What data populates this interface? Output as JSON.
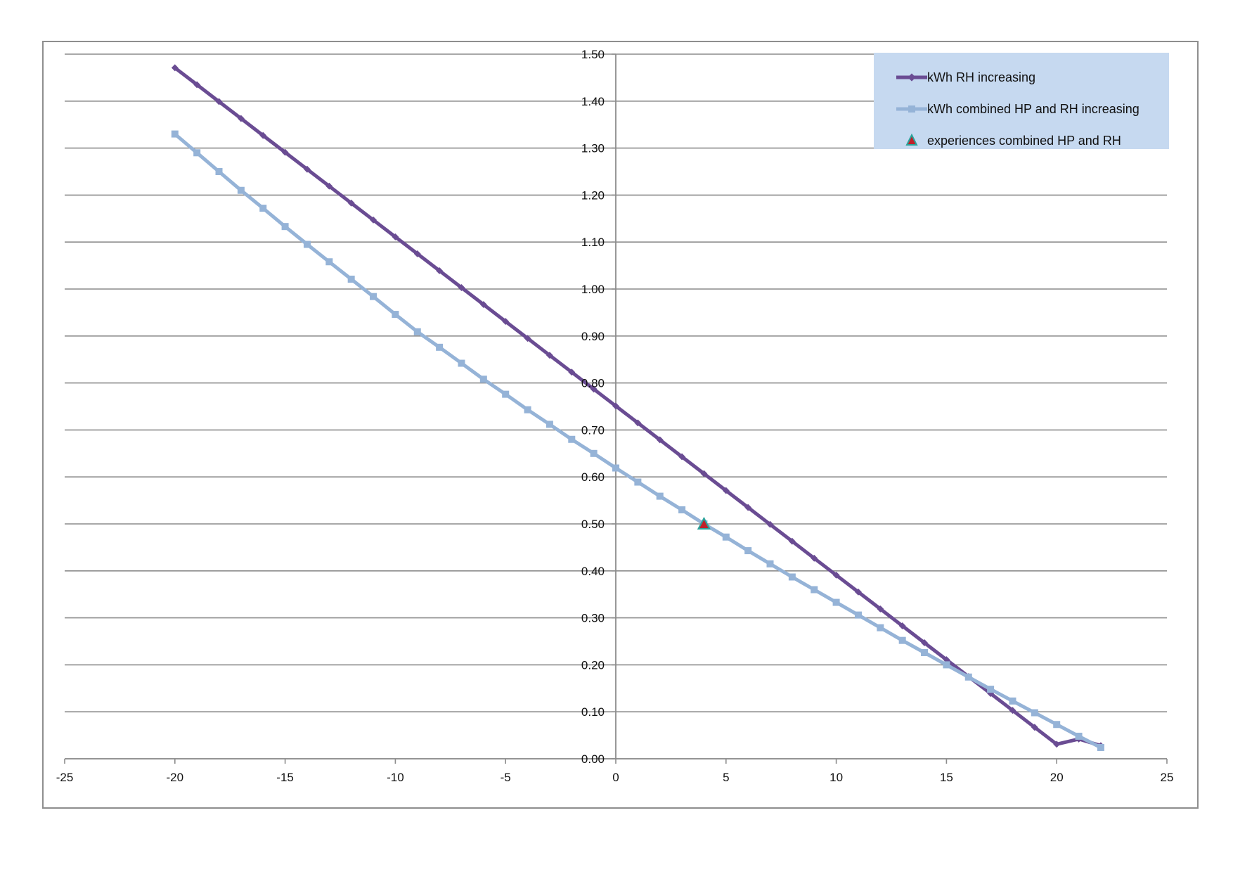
{
  "chart_data": {
    "type": "line",
    "title": "",
    "xlabel": "",
    "ylabel": "",
    "xlim": [
      -25,
      25
    ],
    "ylim": [
      0,
      1.5
    ],
    "x_ticks": [
      "-25",
      "-20",
      "-15",
      "-10",
      "-5",
      "0",
      "5",
      "10",
      "15",
      "20",
      "25"
    ],
    "y_ticks": [
      "0.00",
      "0.10",
      "0.20",
      "0.30",
      "0.40",
      "0.50",
      "0.60",
      "0.70",
      "0.80",
      "0.90",
      "1.00",
      "1.10",
      "1.20",
      "1.30",
      "1.40",
      "1.50"
    ],
    "grid": "horizontal",
    "legend_position": "top-right",
    "series": [
      {
        "name": "kWh RH increasing",
        "type": "line",
        "color": "#6a4c93",
        "marker": "diamond",
        "x": [
          -20,
          -19,
          -18,
          -17,
          -16,
          -15,
          -14,
          -13,
          -12,
          -11,
          -10,
          -9,
          -8,
          -7,
          -6,
          -5,
          -4,
          -3,
          -2,
          -1,
          0,
          1,
          2,
          3,
          4,
          5,
          6,
          7,
          8,
          9,
          10,
          11,
          12,
          13,
          14,
          15,
          16,
          17,
          18,
          19,
          20,
          21,
          22
        ],
        "y": [
          1.471,
          1.435,
          1.399,
          1.363,
          1.327,
          1.291,
          1.255,
          1.219,
          1.183,
          1.147,
          1.111,
          1.075,
          1.039,
          1.003,
          0.967,
          0.931,
          0.895,
          0.859,
          0.823,
          0.787,
          0.751,
          0.715,
          0.679,
          0.643,
          0.607,
          0.571,
          0.535,
          0.499,
          0.463,
          0.427,
          0.391,
          0.355,
          0.319,
          0.283,
          0.247,
          0.211,
          0.175,
          0.139,
          0.103,
          0.067,
          0.031,
          0.042,
          0.028
        ]
      },
      {
        "name": "kWh combined HP and RH increasing",
        "type": "line",
        "color": "#95b3d7",
        "marker": "square",
        "x": [
          -20,
          -19,
          -18,
          -17,
          -16,
          -15,
          -14,
          -13,
          -12,
          -11,
          -10,
          -9,
          -8,
          -7,
          -6,
          -5,
          -4,
          -3,
          -2,
          -1,
          0,
          1,
          2,
          3,
          4,
          5,
          6,
          7,
          8,
          9,
          10,
          11,
          12,
          13,
          14,
          15,
          16,
          17,
          18,
          19,
          20,
          21,
          22
        ],
        "y": [
          1.33,
          1.29,
          1.25,
          1.21,
          1.172,
          1.133,
          1.095,
          1.058,
          1.021,
          0.984,
          0.946,
          0.909,
          0.876,
          0.842,
          0.808,
          0.776,
          0.743,
          0.712,
          0.68,
          0.65,
          0.619,
          0.589,
          0.559,
          0.53,
          0.5,
          0.472,
          0.443,
          0.415,
          0.387,
          0.36,
          0.333,
          0.306,
          0.279,
          0.252,
          0.226,
          0.2,
          0.174,
          0.148,
          0.123,
          0.098,
          0.073,
          0.048,
          0.024
        ]
      },
      {
        "name": "experiences combined HP and RH",
        "type": "scatter",
        "color": "#c0202a",
        "edge_color": "#2aa39b",
        "marker": "triangle",
        "x": [
          4
        ],
        "y": [
          0.5
        ]
      }
    ]
  }
}
